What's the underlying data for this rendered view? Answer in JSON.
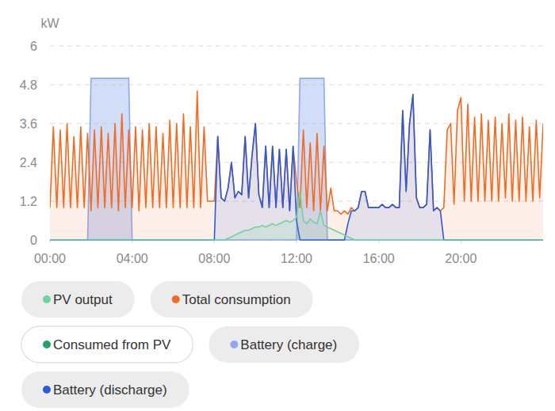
{
  "chart_data": {
    "type": "line",
    "y_label": "kW",
    "x": [
      0,
      10,
      20,
      30,
      40,
      50,
      60,
      70,
      80,
      90,
      100,
      110,
      120,
      130,
      140,
      150,
      160,
      170,
      180,
      190,
      200,
      210,
      220,
      230,
      240,
      250,
      260,
      270,
      280,
      290,
      300,
      310,
      320,
      330,
      340,
      350,
      360,
      370,
      380,
      390,
      400,
      410,
      420,
      430,
      440,
      450,
      460,
      470,
      480,
      490,
      500,
      510,
      520,
      530,
      540,
      550,
      560,
      570,
      580,
      590,
      600,
      610,
      620,
      630,
      640,
      650,
      660,
      670,
      680,
      690,
      700,
      710,
      720,
      730,
      740,
      750,
      760,
      770,
      780,
      790,
      800,
      810,
      820,
      830,
      840,
      850,
      860,
      870,
      880,
      890,
      900,
      910,
      920,
      930,
      940,
      950,
      960,
      970,
      980,
      990,
      1000,
      1010,
      1020,
      1030,
      1040,
      1050,
      1060,
      1070,
      1080,
      1090,
      1100,
      1110,
      1120,
      1130,
      1140,
      1150,
      1160,
      1170,
      1180,
      1190,
      1200,
      1210,
      1220,
      1230,
      1240,
      1250,
      1260,
      1270,
      1280,
      1290,
      1300,
      1310,
      1320,
      1330,
      1340,
      1350,
      1360,
      1370,
      1380,
      1390,
      1400,
      1410,
      1420,
      1430,
      1440
    ],
    "xlim": [
      0,
      1440
    ],
    "xticks": [
      {
        "value": 0,
        "label": "00:00"
      },
      {
        "value": 240,
        "label": "04:00"
      },
      {
        "value": 480,
        "label": "08:00"
      },
      {
        "value": 720,
        "label": "12:00"
      },
      {
        "value": 960,
        "label": "16:00"
      },
      {
        "value": 1200,
        "label": "20:00"
      }
    ],
    "ylim": [
      0,
      6
    ],
    "yticks": [
      0,
      1.2,
      2.4,
      3.6,
      4.8,
      6
    ],
    "grid": true,
    "legend": "bottom",
    "series": [
      {
        "name": "PV output",
        "color": "#6dd3a0",
        "values": [
          0,
          0,
          0,
          0,
          0,
          0,
          0,
          0,
          0,
          0,
          0,
          0,
          0,
          0,
          0,
          0,
          0,
          0,
          0,
          0,
          0,
          0,
          0,
          0,
          0,
          0,
          0,
          0,
          0,
          0,
          0,
          0,
          0,
          0,
          0,
          0,
          0,
          0,
          0,
          0,
          0,
          0,
          0,
          0,
          0,
          0,
          0,
          0,
          0,
          0,
          0,
          0,
          0.05,
          0.1,
          0.15,
          0.2,
          0.25,
          0.3,
          0.3,
          0.35,
          0.4,
          0.4,
          0.45,
          0.4,
          0.45,
          0.5,
          0.45,
          0.5,
          0.55,
          0.6,
          0.55,
          0.6,
          0.7,
          1.5,
          0.6,
          0.5,
          0.65,
          0.55,
          0.5,
          0.9,
          0.45,
          0.4,
          0.35,
          0.3,
          0.25,
          0.2,
          0.15,
          0.1,
          0.05,
          0,
          0,
          0,
          0,
          0,
          0,
          0,
          0,
          0,
          0,
          0,
          0,
          0,
          0,
          0,
          0,
          0,
          0,
          0,
          0,
          0,
          0,
          0,
          0,
          0,
          0,
          0,
          0,
          0,
          0,
          0,
          0,
          0,
          0,
          0,
          0,
          0,
          0,
          0,
          0,
          0,
          0,
          0,
          0,
          0,
          0,
          0,
          0,
          0,
          0,
          0,
          0,
          0,
          0,
          0,
          0
        ]
      },
      {
        "name": "Total consumption",
        "color": "#f26b21",
        "values": [
          1.0,
          3.5,
          1.0,
          3.4,
          1.0,
          3.6,
          1.0,
          3.2,
          1.0,
          3.5,
          1.0,
          3.3,
          0.9,
          3.4,
          1.0,
          3.5,
          1.0,
          3.3,
          1.0,
          3.6,
          0.9,
          3.9,
          1.0,
          3.4,
          1.0,
          3.5,
          0.9,
          3.4,
          1.0,
          3.6,
          1.0,
          3.5,
          1.0,
          3.3,
          1.0,
          3.7,
          1.0,
          3.6,
          1.0,
          3.9,
          1.0,
          3.5,
          1.0,
          4.6,
          1.0,
          3.5,
          1.2,
          1.2,
          1.2,
          3.2,
          1.3,
          1.2,
          1.6,
          2.4,
          1.3,
          1.5,
          1.4,
          3.2,
          1.3,
          2.6,
          3.6,
          1.4,
          1.0,
          2.9,
          1.0,
          2.9,
          1.0,
          2.8,
          1.0,
          2.8,
          0.9,
          2.9,
          1.8,
          1.0,
          3.4,
          1.0,
          3.0,
          0.9,
          3.3,
          0.9,
          2.9,
          0.9,
          1.6,
          0.9,
          0.9,
          0.8,
          0.9,
          0.8,
          1.0,
          0.9,
          1.0,
          1.5,
          1.5,
          1.0,
          1.0,
          1.0,
          1.0,
          1.1,
          1.0,
          1.0,
          1.1,
          1.0,
          1.0,
          4.0,
          1.5,
          3.6,
          4.5,
          1.3,
          1.0,
          1.0,
          1.1,
          3.4,
          0.9,
          1.0,
          0.9,
          1.0,
          3.4,
          3.6,
          1.1,
          4.0,
          4.4,
          1.2,
          4.2,
          1.2,
          3.8,
          1.2,
          3.9,
          1.2,
          3.7,
          1.2,
          3.8,
          1.2,
          3.6,
          1.3,
          3.9,
          1.2,
          3.7,
          1.2,
          3.8,
          1.2,
          3.5,
          1.2,
          3.7,
          1.3,
          3.6
        ]
      },
      {
        "name": "Consumed from PV",
        "color": "#1fa463",
        "values": [
          null,
          null,
          null,
          null,
          null,
          null,
          null,
          null,
          null,
          null,
          null,
          null,
          null,
          null,
          null,
          null,
          null,
          null,
          null,
          null,
          null,
          null,
          null,
          null,
          null,
          null,
          null,
          null,
          null,
          null,
          null,
          null,
          null,
          null,
          null,
          null,
          null,
          null,
          null,
          null,
          null,
          null,
          null,
          null,
          null,
          null,
          null,
          null,
          null,
          null,
          null,
          null,
          null,
          null,
          null,
          null,
          null,
          null,
          null,
          null,
          null,
          null,
          null,
          null,
          null,
          null,
          null,
          null,
          null,
          null,
          null,
          null,
          null,
          null,
          null,
          null,
          null,
          null,
          null,
          null,
          null,
          null,
          null,
          null,
          null,
          null,
          null,
          null,
          null,
          null,
          null,
          null,
          null,
          null,
          null,
          null,
          null,
          null,
          null,
          null,
          null,
          null,
          null,
          null,
          null,
          null,
          null,
          null,
          null,
          null,
          null,
          null,
          null,
          null,
          null,
          null,
          null,
          null,
          null,
          null,
          null,
          null,
          null,
          null,
          null,
          null,
          null,
          null,
          null,
          null,
          null,
          null,
          null,
          null,
          null,
          null,
          null,
          null,
          null,
          null,
          null,
          null,
          null,
          null,
          null
        ]
      },
      {
        "name": "Battery (charge)",
        "color": "#8fa9ee",
        "values": [
          0,
          0,
          0,
          0,
          0,
          0,
          0,
          0,
          0,
          0,
          0,
          0,
          5.0,
          5.0,
          5.0,
          5.0,
          5.0,
          5.0,
          5.0,
          5.0,
          5.0,
          5.0,
          5.0,
          5.0,
          0,
          0,
          0,
          0,
          0,
          0,
          0,
          0,
          0,
          0,
          0,
          0,
          0,
          0,
          0,
          0,
          0,
          0,
          0,
          0,
          0,
          0,
          0,
          0,
          0,
          0,
          0,
          0,
          0,
          0,
          0,
          0,
          0,
          0,
          0,
          0,
          0,
          0,
          0,
          0,
          0,
          0,
          0,
          0,
          0,
          0,
          0,
          0,
          0,
          5.0,
          5.0,
          5.0,
          5.0,
          5.0,
          5.0,
          5.0,
          5.0,
          0,
          0,
          0,
          0,
          0,
          0,
          0,
          0,
          0,
          0,
          0,
          0,
          0,
          0,
          0,
          0,
          0,
          0,
          0,
          0,
          0,
          0,
          0,
          0,
          0,
          0,
          0,
          0,
          0,
          0,
          0,
          0,
          0,
          0,
          0,
          0,
          0,
          0,
          0,
          0,
          0,
          0,
          0,
          0,
          0,
          0,
          0,
          0,
          0,
          0,
          0,
          0,
          0,
          0,
          0,
          0,
          0,
          0,
          0,
          0,
          0,
          0,
          0,
          0
        ]
      },
      {
        "name": "Battery (discharge)",
        "color": "#2b5bd7",
        "values": [
          0,
          0,
          0,
          0,
          0,
          0,
          0,
          0,
          0,
          0,
          0,
          0,
          0,
          0,
          0,
          0,
          0,
          0,
          0,
          0,
          0,
          0,
          0,
          0,
          0,
          0,
          0,
          0,
          0,
          0,
          0,
          0,
          0,
          0,
          0,
          0,
          0,
          0,
          0,
          0,
          0,
          0,
          0,
          0,
          0,
          0,
          0,
          0,
          0,
          3.2,
          1.3,
          1.2,
          1.6,
          2.4,
          1.3,
          1.5,
          1.4,
          3.2,
          1.3,
          2.6,
          3.6,
          1.4,
          1.0,
          2.9,
          1.0,
          2.9,
          1.0,
          2.8,
          1.0,
          2.8,
          0.9,
          2.9,
          0.6,
          0,
          0,
          0,
          0,
          0,
          0,
          0,
          0,
          0,
          0,
          0,
          0,
          0,
          0,
          0.5,
          0.9,
          0.9,
          1.0,
          1.5,
          1.5,
          1.0,
          1.0,
          1.0,
          1.0,
          1.1,
          1.0,
          1.0,
          1.1,
          1.0,
          1.0,
          4.0,
          1.5,
          3.6,
          4.5,
          1.3,
          1.0,
          1.0,
          1.1,
          3.4,
          0.9,
          1.0,
          0.9,
          0,
          0,
          0,
          0,
          0,
          0,
          0,
          0,
          0,
          0,
          0,
          0,
          0,
          0,
          0,
          0,
          0,
          0,
          0,
          0,
          0,
          0,
          0,
          0,
          0,
          0,
          0,
          0,
          0,
          0
        ]
      }
    ]
  }
}
